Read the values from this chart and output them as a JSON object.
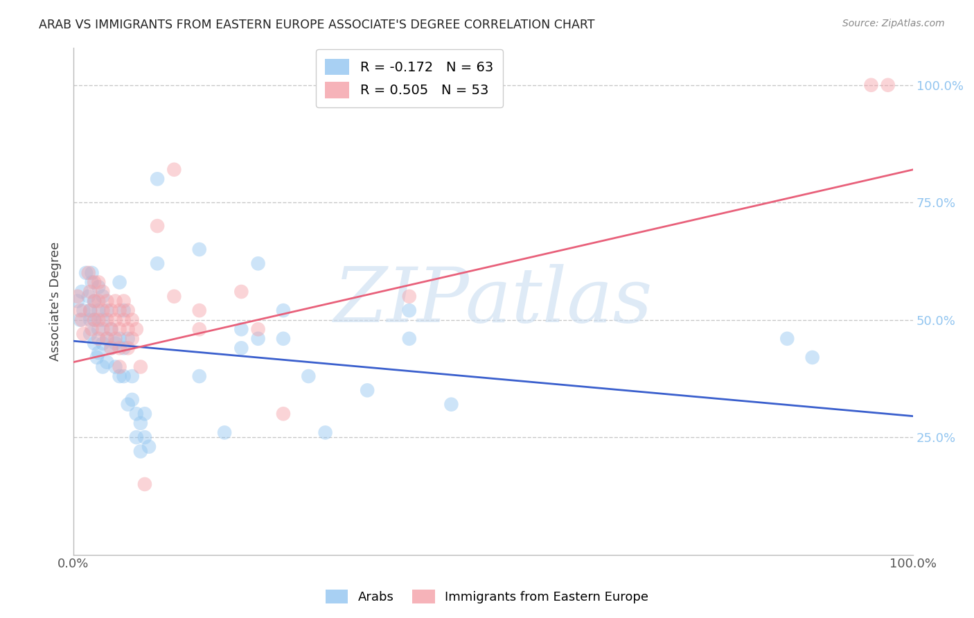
{
  "title": "ARAB VS IMMIGRANTS FROM EASTERN EUROPE ASSOCIATE'S DEGREE CORRELATION CHART",
  "source": "Source: ZipAtlas.com",
  "ylabel": "Associate's Degree",
  "ytick_labels": [
    "25.0%",
    "50.0%",
    "75.0%",
    "100.0%"
  ],
  "ytick_positions": [
    0.25,
    0.5,
    0.75,
    1.0
  ],
  "xlim": [
    0.0,
    1.0
  ],
  "ylim": [
    0.0,
    1.08
  ],
  "legend_label_blue": "Arabs",
  "legend_label_pink": "Immigrants from Eastern Europe",
  "blue_color": "#92C5F0",
  "pink_color": "#F4A0A8",
  "blue_line_color": "#3A5FCD",
  "pink_line_color": "#E8607A",
  "watermark_text": "ZIPatlas",
  "blue_points": [
    [
      0.005,
      0.54
    ],
    [
      0.008,
      0.5
    ],
    [
      0.01,
      0.56
    ],
    [
      0.012,
      0.52
    ],
    [
      0.015,
      0.6
    ],
    [
      0.018,
      0.55
    ],
    [
      0.02,
      0.5
    ],
    [
      0.02,
      0.52
    ],
    [
      0.02,
      0.47
    ],
    [
      0.022,
      0.58
    ],
    [
      0.022,
      0.6
    ],
    [
      0.025,
      0.54
    ],
    [
      0.025,
      0.5
    ],
    [
      0.025,
      0.45
    ],
    [
      0.028,
      0.42
    ],
    [
      0.03,
      0.57
    ],
    [
      0.03,
      0.52
    ],
    [
      0.03,
      0.48
    ],
    [
      0.03,
      0.43
    ],
    [
      0.035,
      0.55
    ],
    [
      0.035,
      0.5
    ],
    [
      0.035,
      0.45
    ],
    [
      0.035,
      0.4
    ],
    [
      0.04,
      0.52
    ],
    [
      0.04,
      0.46
    ],
    [
      0.04,
      0.41
    ],
    [
      0.045,
      0.48
    ],
    [
      0.045,
      0.44
    ],
    [
      0.05,
      0.45
    ],
    [
      0.05,
      0.4
    ],
    [
      0.055,
      0.58
    ],
    [
      0.055,
      0.46
    ],
    [
      0.055,
      0.38
    ],
    [
      0.06,
      0.52
    ],
    [
      0.06,
      0.44
    ],
    [
      0.06,
      0.38
    ],
    [
      0.065,
      0.46
    ],
    [
      0.065,
      0.32
    ],
    [
      0.07,
      0.38
    ],
    [
      0.07,
      0.33
    ],
    [
      0.075,
      0.3
    ],
    [
      0.075,
      0.25
    ],
    [
      0.08,
      0.28
    ],
    [
      0.08,
      0.22
    ],
    [
      0.085,
      0.3
    ],
    [
      0.085,
      0.25
    ],
    [
      0.09,
      0.23
    ],
    [
      0.1,
      0.8
    ],
    [
      0.1,
      0.62
    ],
    [
      0.15,
      0.65
    ],
    [
      0.15,
      0.38
    ],
    [
      0.18,
      0.26
    ],
    [
      0.2,
      0.48
    ],
    [
      0.2,
      0.44
    ],
    [
      0.22,
      0.62
    ],
    [
      0.22,
      0.46
    ],
    [
      0.25,
      0.52
    ],
    [
      0.25,
      0.46
    ],
    [
      0.28,
      0.38
    ],
    [
      0.3,
      0.26
    ],
    [
      0.35,
      0.35
    ],
    [
      0.4,
      0.52
    ],
    [
      0.4,
      0.46
    ],
    [
      0.45,
      0.32
    ],
    [
      0.85,
      0.46
    ],
    [
      0.88,
      0.42
    ]
  ],
  "pink_points": [
    [
      0.005,
      0.55
    ],
    [
      0.008,
      0.52
    ],
    [
      0.01,
      0.5
    ],
    [
      0.012,
      0.47
    ],
    [
      0.018,
      0.6
    ],
    [
      0.02,
      0.56
    ],
    [
      0.02,
      0.52
    ],
    [
      0.022,
      0.48
    ],
    [
      0.025,
      0.58
    ],
    [
      0.025,
      0.54
    ],
    [
      0.025,
      0.5
    ],
    [
      0.03,
      0.58
    ],
    [
      0.03,
      0.54
    ],
    [
      0.03,
      0.5
    ],
    [
      0.03,
      0.46
    ],
    [
      0.035,
      0.56
    ],
    [
      0.035,
      0.52
    ],
    [
      0.035,
      0.48
    ],
    [
      0.04,
      0.54
    ],
    [
      0.04,
      0.5
    ],
    [
      0.04,
      0.46
    ],
    [
      0.045,
      0.52
    ],
    [
      0.045,
      0.48
    ],
    [
      0.045,
      0.44
    ],
    [
      0.05,
      0.54
    ],
    [
      0.05,
      0.5
    ],
    [
      0.05,
      0.46
    ],
    [
      0.055,
      0.52
    ],
    [
      0.055,
      0.48
    ],
    [
      0.055,
      0.44
    ],
    [
      0.055,
      0.4
    ],
    [
      0.06,
      0.54
    ],
    [
      0.06,
      0.5
    ],
    [
      0.065,
      0.52
    ],
    [
      0.065,
      0.48
    ],
    [
      0.065,
      0.44
    ],
    [
      0.07,
      0.5
    ],
    [
      0.07,
      0.46
    ],
    [
      0.075,
      0.48
    ],
    [
      0.08,
      0.4
    ],
    [
      0.085,
      0.15
    ],
    [
      0.1,
      0.7
    ],
    [
      0.12,
      0.82
    ],
    [
      0.12,
      0.55
    ],
    [
      0.15,
      0.52
    ],
    [
      0.15,
      0.48
    ],
    [
      0.2,
      0.56
    ],
    [
      0.22,
      0.48
    ],
    [
      0.25,
      0.3
    ],
    [
      0.4,
      0.55
    ],
    [
      0.95,
      1.0
    ],
    [
      0.97,
      1.0
    ]
  ],
  "blue_regression": {
    "x_start": 0.0,
    "y_start": 0.455,
    "x_end": 1.0,
    "y_end": 0.295
  },
  "pink_regression": {
    "x_start": 0.0,
    "y_start": 0.41,
    "x_end": 1.0,
    "y_end": 0.82
  },
  "marker_size": 220,
  "marker_alpha": 0.45,
  "grid_color": "#BBBBBB",
  "grid_alpha": 0.8,
  "grid_linestyle": "--"
}
